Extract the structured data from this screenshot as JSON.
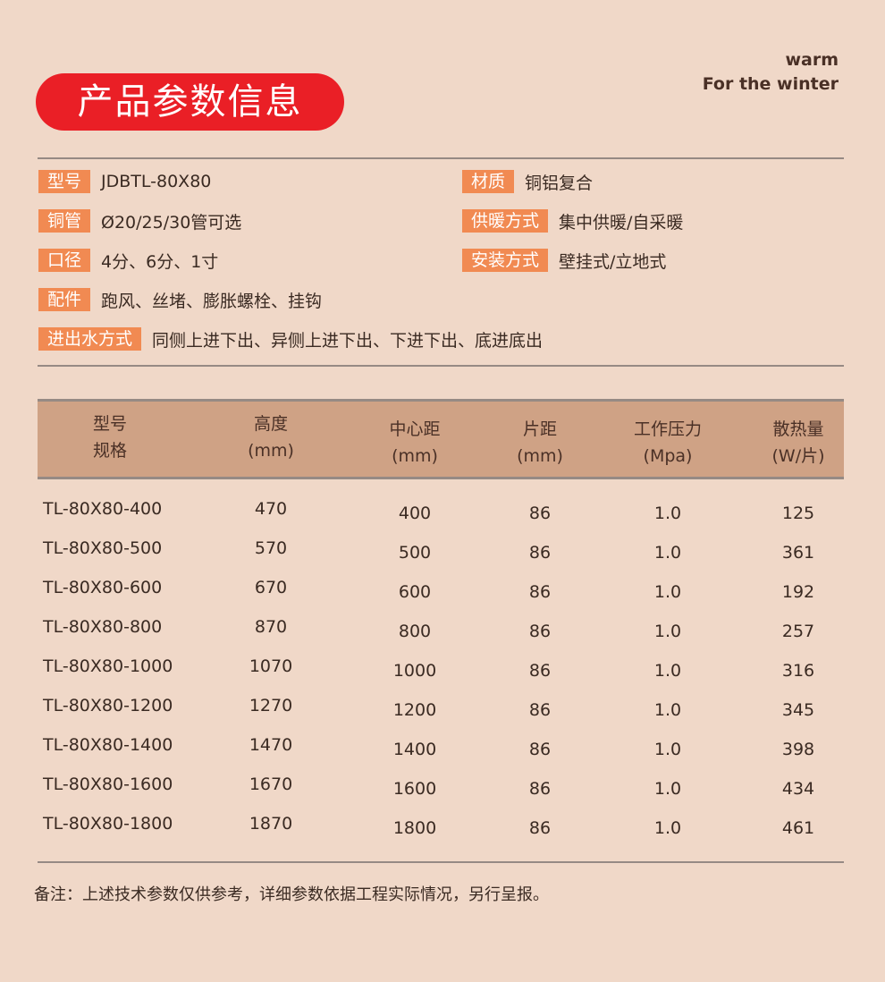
{
  "header": {
    "title": "产品参数信息",
    "tagline_1": "warm",
    "tagline_2": "For the winter"
  },
  "colors": {
    "background": "#f0d8c8",
    "title_pill": "#ea1f26",
    "label": "#f18a52",
    "table_header": "#cfa285"
  },
  "specs": [
    {
      "label": "型号",
      "value": "JDBTL-80X80"
    },
    {
      "label": "铜管",
      "value": "Ø20/25/30管可选"
    },
    {
      "label": "口径",
      "value": "4分、6分、1寸"
    },
    {
      "label": "配件",
      "value": "跑风、丝堵、膨胀螺栓、挂钩"
    },
    {
      "label": "进出水方式",
      "value": "同侧上进下出、异侧上进下出、下进下出、底进底出"
    },
    {
      "label": "材质",
      "value": "铜铝复合"
    },
    {
      "label": "供暖方式",
      "value": "集中供暖/自采暖"
    },
    {
      "label": "安装方式",
      "value": "壁挂式/立地式"
    }
  ],
  "table": {
    "headers": [
      {
        "line1": "型号",
        "line2": "规格"
      },
      {
        "line1": "高度",
        "line2": "(mm)"
      },
      {
        "line1": "中心距",
        "line2": "(mm)"
      },
      {
        "line1": "片距",
        "line2": "(mm)"
      },
      {
        "line1": "工作压力",
        "line2": "(Mpa)"
      },
      {
        "line1": "散热量",
        "line2": "(W/片)"
      }
    ],
    "rows": [
      [
        "TL-80X80-400",
        "470",
        "400",
        "86",
        "1.0",
        "125"
      ],
      [
        "TL-80X80-500",
        "570",
        "500",
        "86",
        "1.0",
        "361"
      ],
      [
        "TL-80X80-600",
        "670",
        "600",
        "86",
        "1.0",
        "192"
      ],
      [
        "TL-80X80-800",
        "870",
        "800",
        "86",
        "1.0",
        "257"
      ],
      [
        "TL-80X80-1000",
        "1070",
        "1000",
        "86",
        "1.0",
        "316"
      ],
      [
        "TL-80X80-1200",
        "1270",
        "1200",
        "86",
        "1.0",
        "345"
      ],
      [
        "TL-80X80-1400",
        "1470",
        "1400",
        "86",
        "1.0",
        "398"
      ],
      [
        "TL-80X80-1600",
        "1670",
        "1600",
        "86",
        "1.0",
        "434"
      ],
      [
        "TL-80X80-1800",
        "1870",
        "1800",
        "86",
        "1.0",
        "461"
      ]
    ]
  },
  "note": "备注：上述技术参数仅供参考，详细参数依据工程实际情况，另行呈报。"
}
